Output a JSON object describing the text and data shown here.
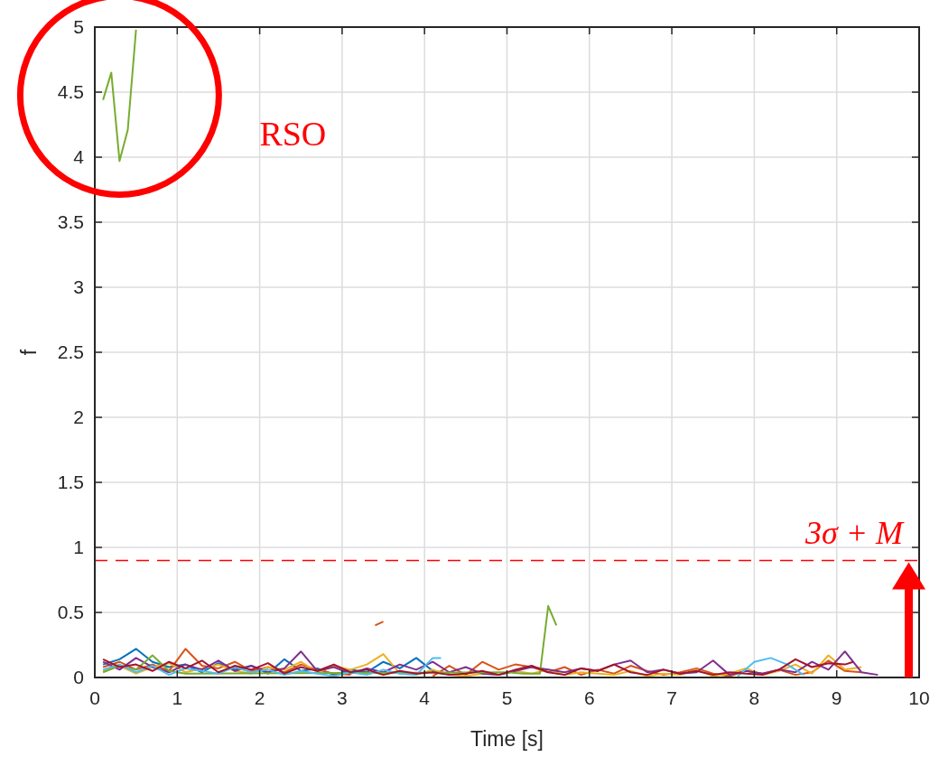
{
  "chart_data": {
    "type": "line",
    "xlabel": "Time [s]",
    "ylabel": "f",
    "xlim": [
      0,
      10
    ],
    "ylim": [
      0,
      5
    ],
    "xticks": [
      0,
      1,
      2,
      3,
      4,
      5,
      6,
      7,
      8,
      9,
      10
    ],
    "yticks": [
      0,
      0.5,
      1,
      1.5,
      2,
      2.5,
      3,
      3.5,
      4,
      4.5,
      5
    ],
    "grid": true,
    "line_style": "solid",
    "annotations": [
      "RSO"
    ],
    "ref_lines": [
      {
        "axis": "y",
        "value": 0.9,
        "label": "3σ + M",
        "color": "#ff0000",
        "line_style": "dashed"
      }
    ],
    "series": [
      {
        "color": "#77ac30",
        "x": [
          0.1,
          0.2,
          0.3,
          0.4,
          0.5
        ],
        "values": [
          4.44,
          4.65,
          3.97,
          4.21,
          4.98
        ]
      },
      {
        "color": "#0072bd",
        "x": [
          0.1,
          0.3,
          0.5,
          0.7,
          0.9,
          1.1,
          1.3,
          1.5,
          1.7,
          1.9,
          2.1,
          2.3,
          2.5,
          2.7,
          2.9,
          3.1,
          3.3,
          3.5,
          3.7,
          3.9,
          4.1,
          4.3
        ],
        "values": [
          0.1,
          0.14,
          0.22,
          0.12,
          0.08,
          0.1,
          0.04,
          0.11,
          0.06,
          0.09,
          0.03,
          0.14,
          0.05,
          0.07,
          0.02,
          0.06,
          0.04,
          0.12,
          0.07,
          0.15,
          0.05,
          0.03
        ]
      },
      {
        "color": "#d95319",
        "x": [
          0.1,
          0.3,
          0.5,
          0.7,
          0.9,
          1.1,
          1.3,
          1.5,
          1.7,
          1.9,
          2.1,
          2.3,
          2.5,
          2.7,
          2.9,
          3.1
        ],
        "values": [
          0.08,
          0.12,
          0.06,
          0.1,
          0.05,
          0.22,
          0.09,
          0.07,
          0.12,
          0.05,
          0.08,
          0.04,
          0.1,
          0.06,
          0.03,
          0.02
        ]
      },
      {
        "color": "#d95319",
        "x": [
          3.4,
          3.5
        ],
        "values": [
          0.4,
          0.43
        ]
      },
      {
        "color": "#d95319",
        "x": [
          4.1,
          4.3,
          4.5,
          4.7,
          4.9,
          5.1,
          5.3,
          5.5,
          5.7,
          5.9,
          6.1,
          6.3,
          6.5,
          6.7,
          6.9,
          7.1,
          7.3,
          7.5,
          7.7,
          7.9,
          8.1,
          8.3,
          8.5,
          8.7,
          8.9,
          9.1,
          9.3
        ],
        "values": [
          0.01,
          0.09,
          0.02,
          0.12,
          0.06,
          0.1,
          0.08,
          0.04,
          0.08,
          0.02,
          0.06,
          0.03,
          0.09,
          0.05,
          0.02,
          0.04,
          0.07,
          0.03,
          0.01,
          0.05,
          0.03,
          0.06,
          0.02,
          0.04,
          0.13,
          0.05,
          0.04
        ]
      },
      {
        "color": "#edb120",
        "x": [
          0.1,
          0.3,
          0.5,
          0.7,
          0.9,
          1.1,
          1.3,
          1.5,
          1.7,
          1.9,
          2.1,
          2.3,
          2.5,
          2.7,
          2.9,
          3.1,
          3.3,
          3.5,
          3.7,
          3.9,
          4.1,
          4.3,
          4.5,
          4.7,
          4.9,
          5.1,
          5.3,
          5.5,
          5.7,
          5.9,
          6.1,
          6.3,
          6.5,
          6.7,
          6.9,
          7.1,
          7.3,
          7.5,
          7.7,
          7.9,
          8.1,
          8.3,
          8.5,
          8.7,
          8.9,
          9.1,
          9.3
        ],
        "values": [
          0.05,
          0.09,
          0.03,
          0.08,
          0.11,
          0.04,
          0.07,
          0.1,
          0.05,
          0.03,
          0.08,
          0.06,
          0.12,
          0.04,
          0.09,
          0.06,
          0.1,
          0.18,
          0.03,
          0.02,
          0.06,
          0.02,
          0.01,
          0.03,
          0.02,
          0.05,
          0.03,
          0.06,
          0.02,
          0.04,
          0.03,
          0.02,
          0.05,
          0.01,
          0.03,
          0.02,
          0.06,
          0.01,
          0.03,
          0.07,
          0.02,
          0.05,
          0.1,
          0.03,
          0.17,
          0.06,
          0.08
        ]
      },
      {
        "color": "#7e2f8e",
        "x": [
          0.1,
          0.3,
          0.5,
          0.7,
          0.9,
          1.1,
          1.3,
          1.5,
          1.7,
          1.9,
          2.1,
          2.3,
          2.5,
          2.7,
          2.9,
          3.1,
          3.3,
          3.5,
          3.7,
          3.9,
          4.1,
          4.3,
          4.5,
          4.7,
          4.9,
          5.1,
          5.3,
          5.5,
          5.7,
          5.9,
          6.1,
          6.3,
          6.5,
          6.7,
          6.9,
          7.1,
          7.3,
          7.5,
          7.7,
          7.9,
          8.1,
          8.3,
          8.5,
          8.7,
          8.9,
          9.1,
          9.3,
          9.5
        ],
        "values": [
          0.12,
          0.06,
          0.15,
          0.08,
          0.04,
          0.1,
          0.06,
          0.13,
          0.05,
          0.09,
          0.04,
          0.07,
          0.2,
          0.05,
          0.08,
          0.03,
          0.07,
          0.04,
          0.1,
          0.06,
          0.12,
          0.04,
          0.08,
          0.03,
          0.02,
          0.05,
          0.08,
          0.06,
          0.04,
          0.07,
          0.05,
          0.1,
          0.13,
          0.04,
          0.06,
          0.03,
          0.04,
          0.13,
          0.02,
          0.05,
          0.03,
          0.06,
          0.04,
          0.12,
          0.06,
          0.2,
          0.04,
          0.02
        ]
      },
      {
        "color": "#77ac30",
        "x": [
          0.1,
          0.3,
          0.5,
          0.7,
          0.9,
          1.1,
          5.0,
          5.2,
          5.4,
          5.5,
          5.6
        ],
        "values": [
          0.04,
          0.09,
          0.06,
          0.17,
          0.05,
          0.03,
          0.04,
          0.03,
          0.03,
          0.55,
          0.4
        ]
      },
      {
        "color": "#4dbeee",
        "x": [
          0.1,
          0.3,
          0.5,
          0.7,
          0.9,
          1.1,
          1.3,
          1.5,
          1.7,
          1.9,
          2.1,
          2.3,
          2.5,
          2.7,
          2.9,
          3.1,
          3.3,
          3.5,
          3.7,
          3.9,
          4.1,
          4.2
        ],
        "values": [
          0.06,
          0.1,
          0.04,
          0.09,
          0.02,
          0.07,
          0.05,
          0.03,
          0.08,
          0.04,
          0.06,
          0.02,
          0.05,
          0.03,
          0.01,
          0.04,
          0.02,
          0.06,
          0.03,
          0.02,
          0.15,
          0.15
        ]
      },
      {
        "color": "#4dbeee",
        "x": [
          7.8,
          8.0,
          8.2,
          8.4,
          8.6
        ],
        "values": [
          0.01,
          0.12,
          0.15,
          0.1,
          0.02
        ]
      },
      {
        "color": "#a2142f",
        "x": [
          0.1,
          0.3,
          0.5,
          0.7,
          0.9,
          1.1,
          1.3,
          1.5,
          1.7,
          1.9,
          2.1,
          2.3,
          2.5,
          2.7,
          2.9,
          3.1,
          3.3,
          3.5,
          3.7,
          3.9,
          4.1,
          4.3,
          4.5,
          4.7,
          4.9,
          5.1,
          5.3,
          5.5,
          5.7,
          5.9,
          6.1,
          6.3,
          6.5,
          6.7,
          6.9,
          7.1,
          7.3,
          7.5,
          7.7,
          7.9,
          8.1,
          8.3,
          8.5,
          8.7,
          8.9,
          9.1,
          9.2
        ],
        "values": [
          0.14,
          0.08,
          0.1,
          0.05,
          0.12,
          0.07,
          0.13,
          0.04,
          0.09,
          0.06,
          0.11,
          0.03,
          0.08,
          0.05,
          0.1,
          0.04,
          0.06,
          0.02,
          0.05,
          0.03,
          0.04,
          0.02,
          0.03,
          0.05,
          0.02,
          0.06,
          0.09,
          0.04,
          0.02,
          0.07,
          0.05,
          0.1,
          0.04,
          0.02,
          0.06,
          0.03,
          0.05,
          0.02,
          0.04,
          0.03,
          0.02,
          0.06,
          0.14,
          0.08,
          0.11,
          0.1,
          0.12
        ]
      }
    ]
  }
}
